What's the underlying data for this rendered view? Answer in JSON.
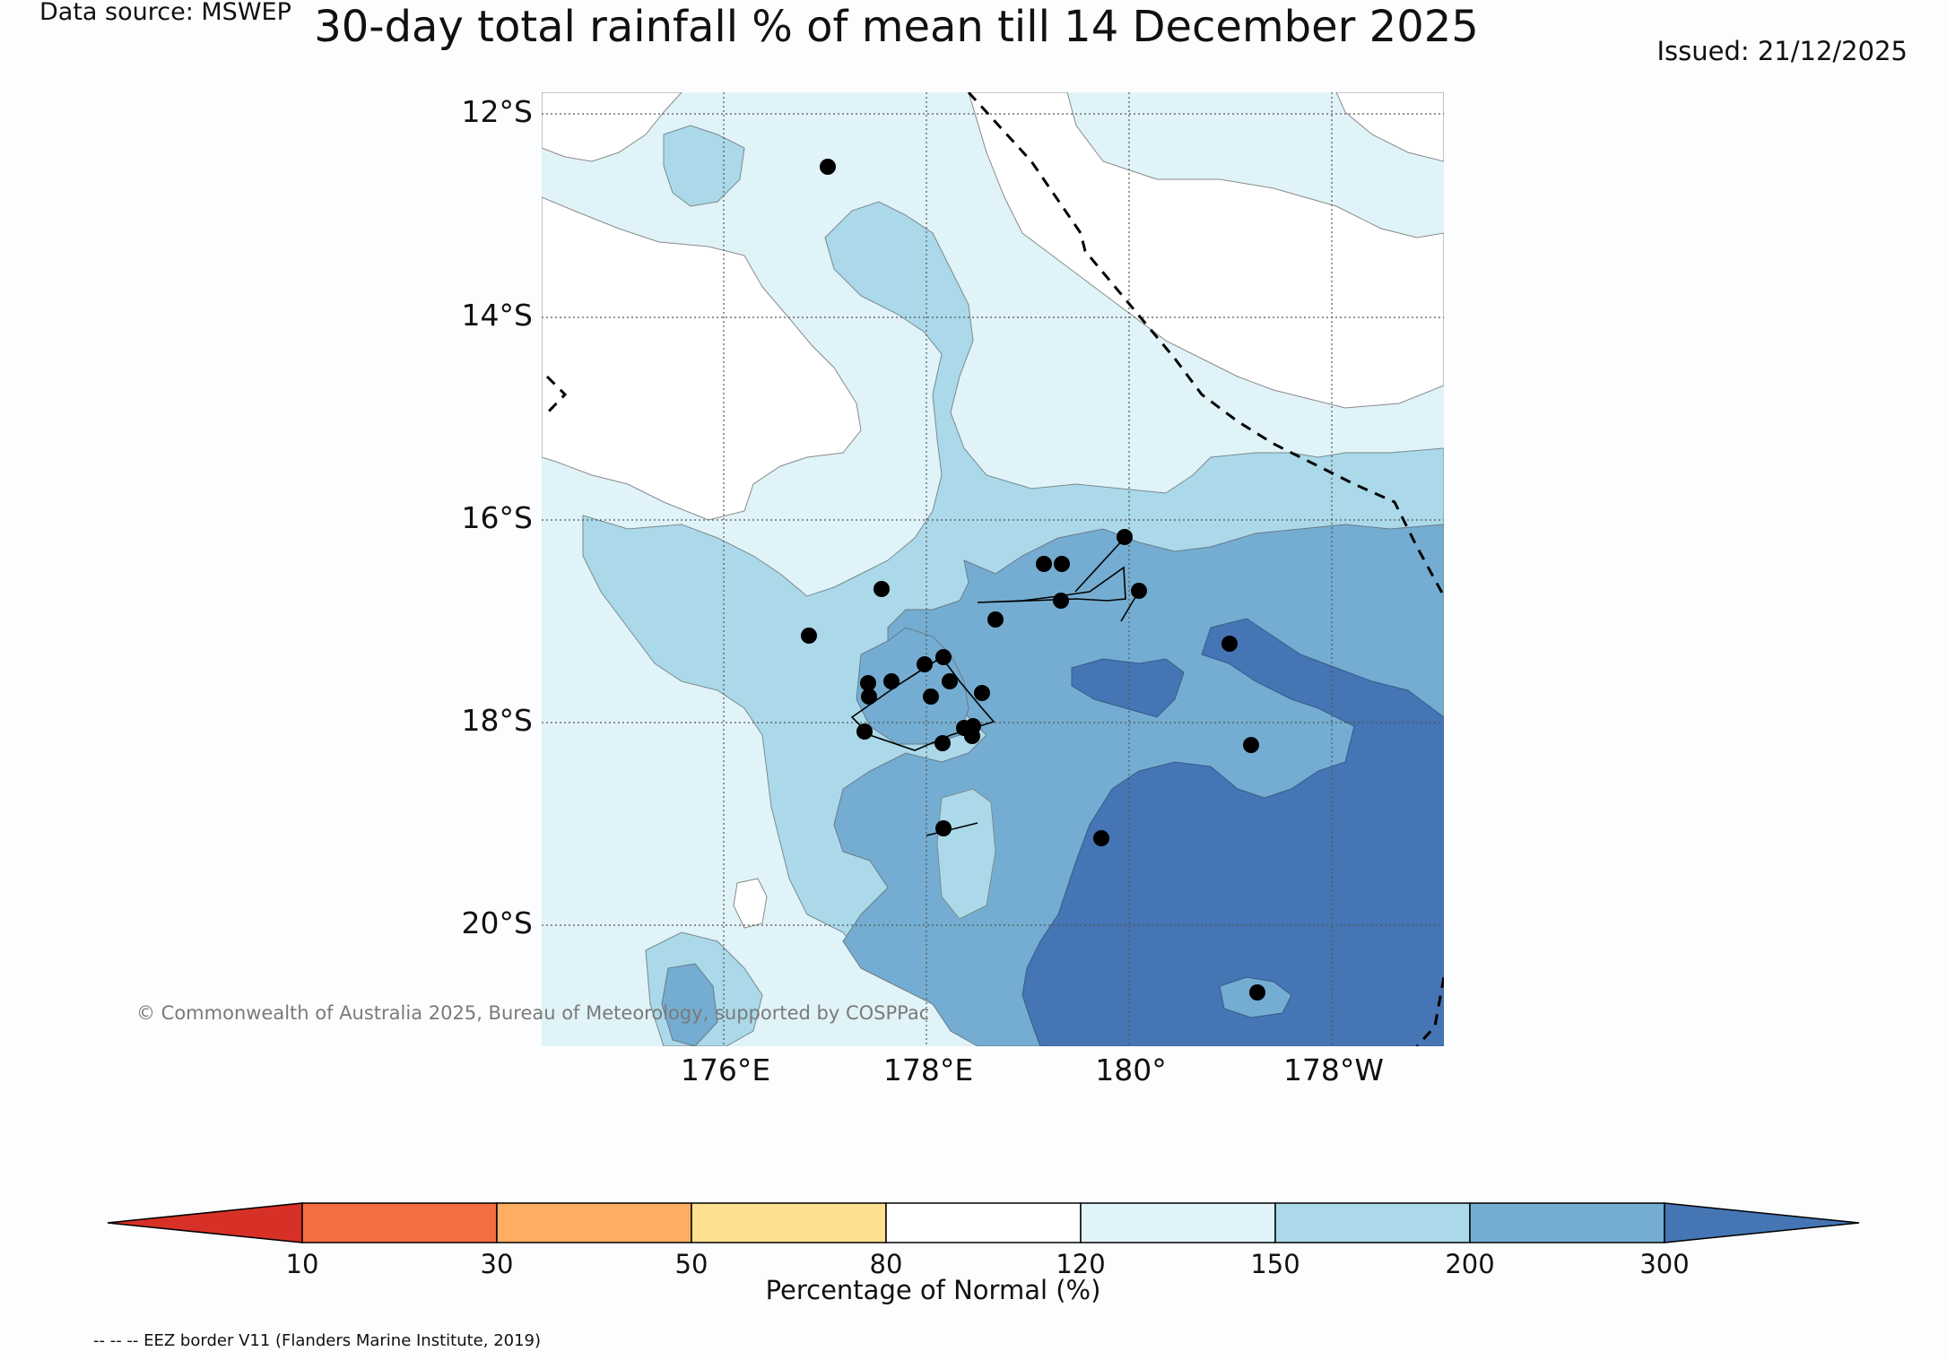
{
  "header": {
    "data_source": "Data source: MSWEP",
    "title": "30-day total rainfall % of mean till 14 December 2025",
    "issued": "Issued: 21/12/2025"
  },
  "map": {
    "lat_labels": [
      "12°S",
      "14°S",
      "16°S",
      "18°S",
      "20°S"
    ],
    "lon_labels": [
      "176°E",
      "178°E",
      "180°",
      "178°W"
    ],
    "copyright": "© Commonwealth of Australia 2025, Bureau of Meteorology, supported by COSPPac",
    "colors": {
      "cls_80_120": "#ffffff",
      "cls_120_150": "#e0f3f8",
      "cls_150_200": "#abd9e9",
      "cls_200_300": "#74add1",
      "cls_300_plus": "#4575b4"
    }
  },
  "colorbar": {
    "title": "Percentage of Normal (%)",
    "ticks": [
      "10",
      "30",
      "50",
      "80",
      "120",
      "150",
      "200",
      "300"
    ],
    "colors": [
      "#d73027",
      "#f46d43",
      "#fdae61",
      "#fee090",
      "#ffffff",
      "#e0f3f8",
      "#abd9e9",
      "#74add1",
      "#4575b4"
    ]
  },
  "footer": {
    "eez_note": "-- -- -- EEZ border V11 (Flanders Marine Institute, 2019)"
  }
}
